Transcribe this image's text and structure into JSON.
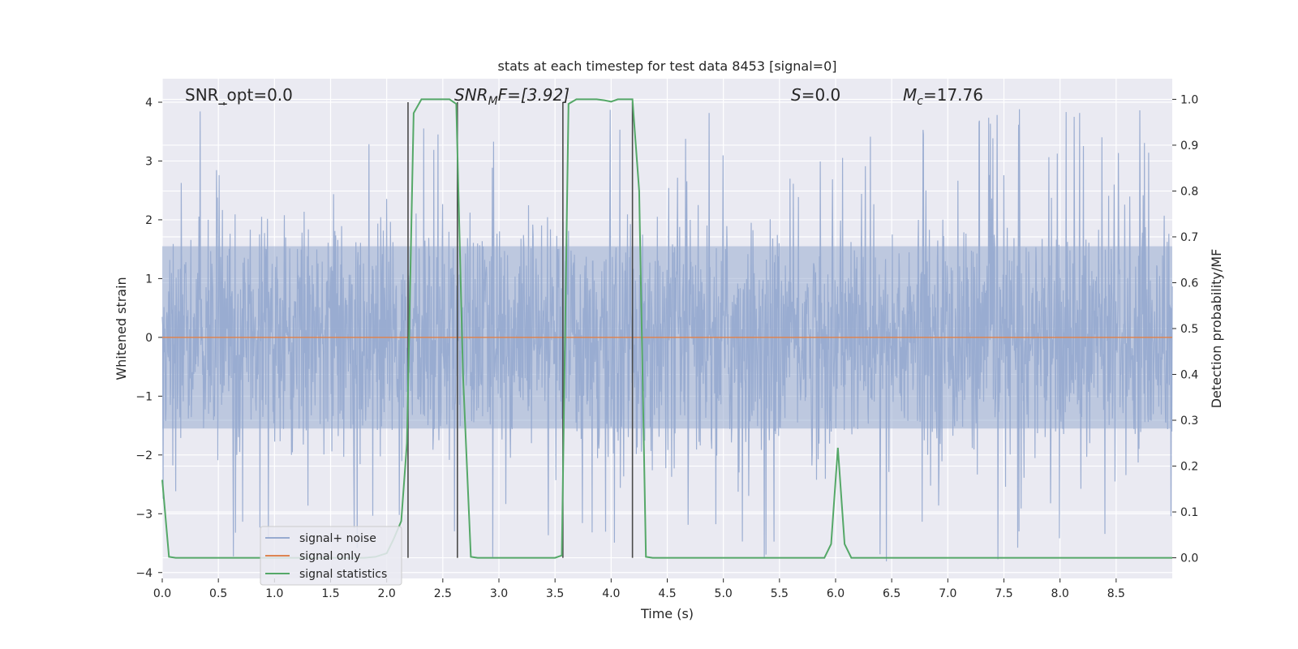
{
  "chart_data": {
    "type": "line",
    "title": "stats at each timestep for test data 8453 [signal=0]",
    "xlabel": "Time (s)",
    "ylabel": "Whitened strain",
    "y2label": "Detection probability/MF",
    "xlim": [
      0.0,
      9.0
    ],
    "ylim": [
      -4.1,
      4.4
    ],
    "y2lim": [
      -0.045,
      1.045
    ],
    "xticks": [
      "0.0",
      "0.5",
      "1.0",
      "1.5",
      "2.0",
      "2.5",
      "3.0",
      "3.5",
      "4.0",
      "4.5",
      "5.0",
      "5.5",
      "6.0",
      "6.5",
      "7.0",
      "7.5",
      "8.0",
      "8.5"
    ],
    "yticks": [
      "−4",
      "−3",
      "−2",
      "−1",
      "0",
      "1",
      "2",
      "3",
      "4"
    ],
    "y2ticks": [
      "0.0",
      "0.1",
      "0.2",
      "0.3",
      "0.4",
      "0.5",
      "0.6",
      "0.7",
      "0.8",
      "0.9",
      "1.0"
    ],
    "grid": true,
    "legend_placement": "lower-left",
    "annotations": {
      "snr_opt": "SNR_opt=0.0",
      "snr_mf_main": "SNR",
      "snr_mf_sub": "M",
      "snr_mf_rest": "F=[3.92]",
      "s_main": "S",
      "s_rest": "=0.0",
      "mc_main": "M",
      "mc_sub": "c",
      "mc_rest": "=17.76"
    },
    "series": [
      {
        "name": "signal+ noise",
        "color": "#98abd0",
        "description_values": "whitened noise strain, dense, mostly within [-1.5, 1.5] with spikes to about ±3.9",
        "envelope": {
          "typical_abs": 1.6,
          "peak_abs": 3.9
        }
      },
      {
        "name": "signal only",
        "color": "#dd8452",
        "x": [
          0.0,
          9.0
        ],
        "y": [
          0.0,
          0.0
        ]
      },
      {
        "name": "signal statistics",
        "color": "#55a868",
        "axis": "right",
        "x": [
          0.0,
          0.06,
          0.12,
          1.8,
          1.9,
          2.0,
          2.06,
          2.13,
          2.18,
          2.24,
          2.31,
          2.37,
          2.44,
          2.5,
          2.56,
          2.62,
          2.68,
          2.75,
          2.81,
          2.87,
          3.5,
          3.56,
          3.62,
          3.69,
          3.75,
          3.81,
          3.87,
          3.94,
          4.0,
          4.06,
          4.12,
          4.19,
          4.25,
          4.31,
          4.37,
          4.44,
          5.9,
          5.96,
          6.02,
          6.08,
          6.14,
          6.2,
          6.26,
          9.0
        ],
        "y": [
          0.17,
          0.002,
          0.0,
          0.0,
          0.002,
          0.01,
          0.04,
          0.08,
          0.25,
          0.97,
          1.0,
          1.0,
          1.0,
          1.0,
          1.0,
          0.99,
          0.4,
          0.002,
          0.0,
          0.0,
          0.0,
          0.005,
          0.99,
          1.0,
          1.0,
          1.0,
          1.0,
          0.998,
          0.995,
          1.0,
          1.0,
          1.0,
          0.8,
          0.002,
          0.0,
          0.0,
          0.0,
          0.03,
          0.24,
          0.03,
          0.0,
          0.0,
          0.0,
          0.0
        ]
      },
      {
        "name": "mf_markers",
        "color": "#4a4a4a",
        "axis": "left",
        "x": [
          0.55,
          2.19,
          2.63,
          3.57,
          4.19
        ],
        "y_top": [
          4.0,
          4.0,
          4.0,
          4.0,
          4.0
        ],
        "y_bottom": [
          3.95,
          -3.75,
          -3.75,
          -3.75,
          -3.75
        ]
      }
    ]
  }
}
